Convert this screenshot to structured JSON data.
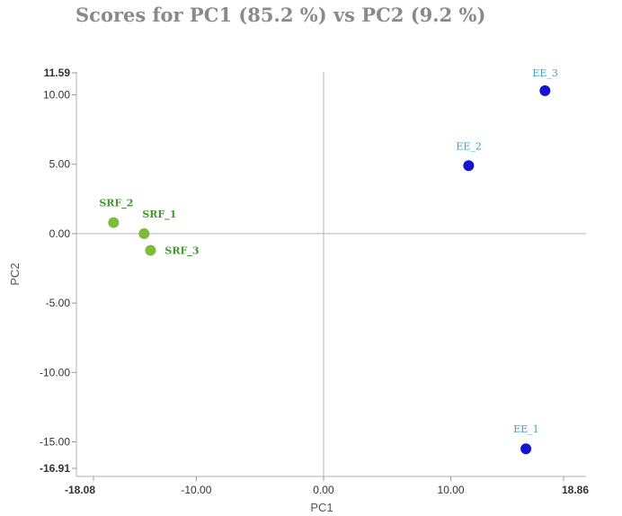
{
  "chart_data": {
    "type": "scatter",
    "title": "Scores for PC1 (85.2 %) vs PC2 (9.2 %)",
    "xlabel": "PC1",
    "ylabel": "PC2",
    "xlim": [
      -18.08,
      18.86
    ],
    "ylim": [
      -16.91,
      11.59
    ],
    "x_ticks": [
      "-18.08",
      "-10.00",
      "0.00",
      "10.00",
      "18.86"
    ],
    "x_tick_values": [
      -18.08,
      -10.0,
      0.0,
      10.0,
      18.86
    ],
    "y_ticks": [
      "11.59",
      "10.00",
      "5.00",
      "0.00",
      "-5.00",
      "-10.00",
      "-15.00",
      "-16.91"
    ],
    "y_tick_values": [
      11.59,
      10.0,
      5.0,
      0.0,
      -5.0,
      -10.0,
      -15.0,
      -16.91
    ],
    "grid": false,
    "zero_lines": true,
    "series": [
      {
        "color": "#7dbb3a",
        "label_color": "#3f9a2a",
        "points": [
          {
            "label": "SRF_1",
            "x": -14.1,
            "y": 0.0
          },
          {
            "label": "SRF_2",
            "x": -16.5,
            "y": 0.8
          },
          {
            "label": "SRF_3",
            "x": -13.6,
            "y": -1.2
          }
        ]
      },
      {
        "color": "#1515d0",
        "label_color": "#3aa3c7",
        "points": [
          {
            "label": "EE_1",
            "x": 15.9,
            "y": -15.5
          },
          {
            "label": "EE_2",
            "x": 11.4,
            "y": 4.9
          },
          {
            "label": "EE_3",
            "x": 17.4,
            "y": 10.3
          }
        ]
      }
    ]
  }
}
